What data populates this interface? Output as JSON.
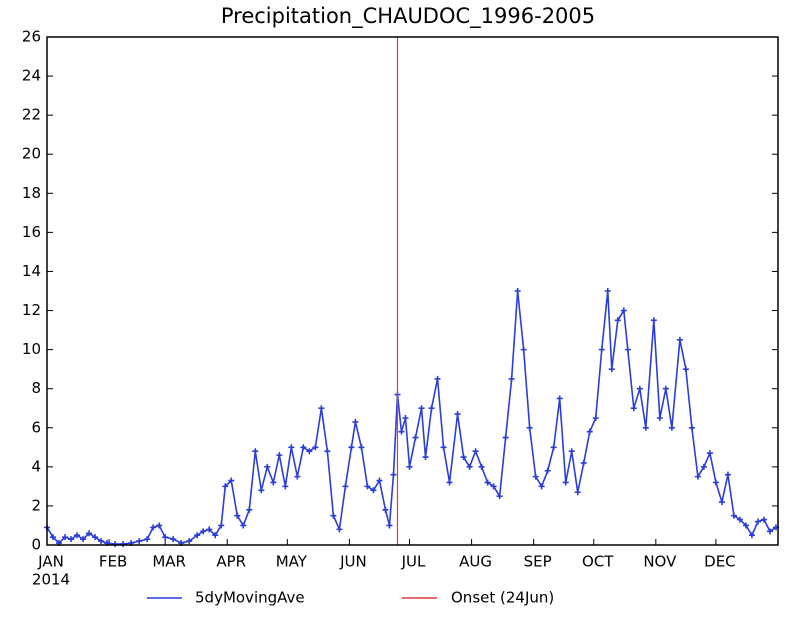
{
  "chart_data": {
    "type": "line",
    "title": "Precipitation_CHAUDOC_1996-2005",
    "year_label": "2014",
    "xlim": [
      0,
      365
    ],
    "xticks": [
      {
        "value": 0,
        "label": "JAN"
      },
      {
        "value": 31,
        "label": "FEB"
      },
      {
        "value": 59,
        "label": "MAR"
      },
      {
        "value": 90,
        "label": "APR"
      },
      {
        "value": 120,
        "label": "MAY"
      },
      {
        "value": 151,
        "label": "JUN"
      },
      {
        "value": 181,
        "label": "JUL"
      },
      {
        "value": 212,
        "label": "AUG"
      },
      {
        "value": 243,
        "label": "SEP"
      },
      {
        "value": 273,
        "label": "OCT"
      },
      {
        "value": 304,
        "label": "NOV"
      },
      {
        "value": 334,
        "label": "DEC"
      }
    ],
    "ylim": [
      0,
      26
    ],
    "yticks": [
      0,
      2,
      4,
      6,
      8,
      10,
      12,
      14,
      16,
      18,
      20,
      22,
      24,
      26
    ],
    "x": [
      0,
      3,
      6,
      9,
      12,
      15,
      18,
      21,
      24,
      27,
      30,
      34,
      38,
      42,
      46,
      50,
      53,
      56,
      59,
      63,
      67,
      71,
      75,
      78,
      81,
      84,
      87,
      89,
      92,
      95,
      98,
      101,
      104,
      107,
      110,
      113,
      116,
      119,
      122,
      125,
      128,
      131,
      134,
      137,
      140,
      143,
      146,
      149,
      152,
      154,
      157,
      160,
      163,
      166,
      169,
      171,
      173,
      175,
      177,
      179,
      181,
      184,
      187,
      189,
      192,
      195,
      198,
      201,
      205,
      208,
      211,
      214,
      217,
      220,
      223,
      226,
      229,
      232,
      235,
      238,
      241,
      244,
      247,
      250,
      253,
      256,
      259,
      262,
      265,
      268,
      271,
      274,
      277,
      280,
      282,
      285,
      288,
      290,
      293,
      296,
      299,
      303,
      306,
      309,
      312,
      316,
      319,
      322,
      325,
      328,
      331,
      334,
      337,
      340,
      343,
      346,
      349,
      352,
      355,
      358,
      361,
      364
    ],
    "series": [
      {
        "name": "5dyMovingAve",
        "color": "#2a3ddc",
        "values": [
          0.9,
          0.4,
          0.1,
          0.4,
          0.3,
          0.5,
          0.3,
          0.6,
          0.4,
          0.2,
          0.1,
          0.05,
          0.05,
          0.1,
          0.2,
          0.3,
          0.9,
          1.0,
          0.4,
          0.3,
          0.1,
          0.2,
          0.5,
          0.7,
          0.8,
          0.5,
          1.0,
          3.0,
          3.3,
          1.5,
          1.0,
          1.8,
          4.8,
          2.8,
          4.0,
          3.2,
          4.6,
          3.0,
          5.0,
          3.5,
          5.0,
          4.8,
          5.0,
          7.0,
          4.8,
          1.5,
          0.8,
          3.0,
          5.0,
          6.3,
          5.0,
          3.0,
          2.8,
          3.3,
          1.8,
          1.0,
          3.6,
          7.7,
          5.8,
          6.5,
          4.0,
          5.5,
          7.0,
          4.5,
          7.0,
          8.5,
          5.0,
          3.2,
          6.7,
          4.5,
          4.0,
          4.8,
          4.0,
          3.2,
          3.0,
          2.5,
          5.5,
          8.5,
          13.0,
          10.0,
          6.0,
          3.5,
          3.0,
          3.8,
          5.0,
          7.5,
          3.2,
          4.8,
          2.7,
          4.2,
          5.8,
          6.5,
          10.0,
          13.0,
          9.0,
          11.5,
          12.0,
          10.0,
          7.0,
          8.0,
          6.0,
          11.5,
          6.5,
          8.0,
          6.0,
          10.5,
          9.0,
          6.0,
          3.5,
          4.0,
          4.7,
          3.2,
          2.2,
          3.6,
          1.5,
          1.3,
          1.0,
          0.5,
          1.2,
          1.3,
          0.7,
          0.9
        ]
      }
    ],
    "onset": {
      "name": "Onset (24Jun)",
      "x": 175,
      "color": "#e03a3a"
    }
  }
}
